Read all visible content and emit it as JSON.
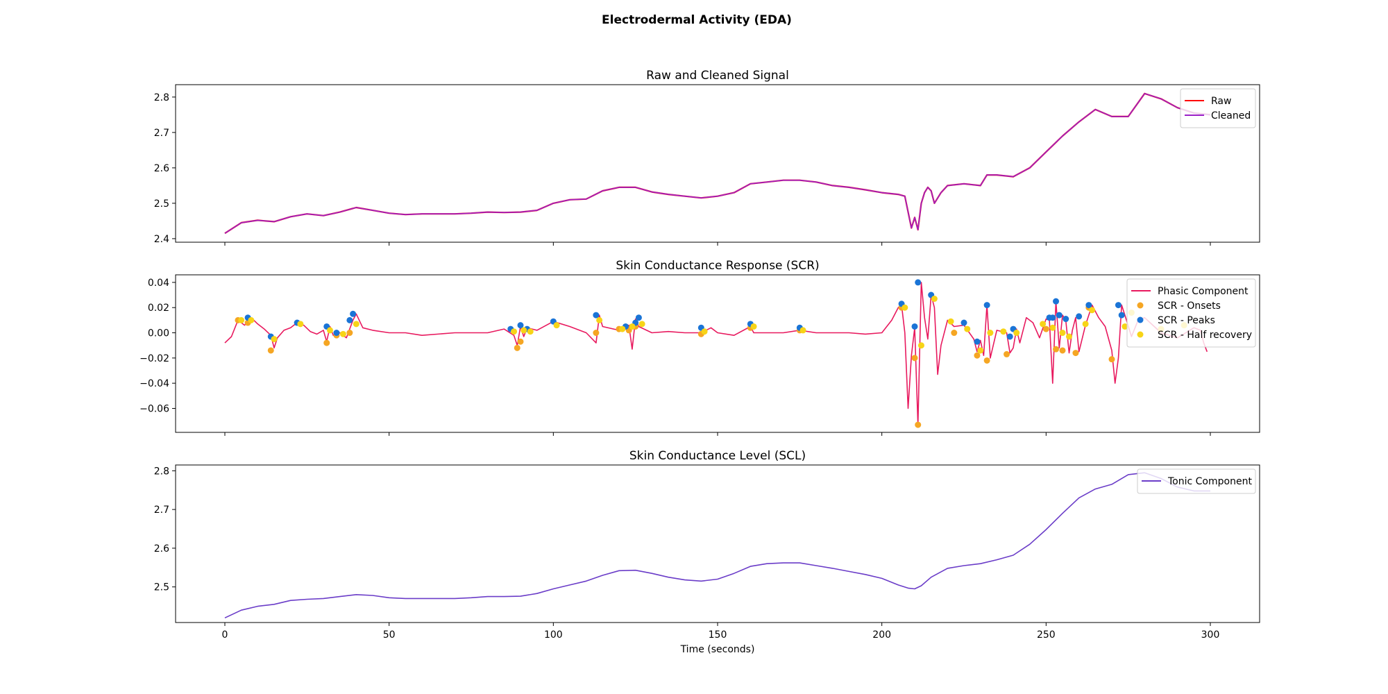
{
  "figure_title": "Electrodermal Activity (EDA)",
  "chart_data": [
    {
      "type": "line",
      "title": "Raw and Cleaned Signal",
      "xlabel": "",
      "ylabel": "",
      "xlim": [
        -15,
        315
      ],
      "ylim": [
        2.39,
        2.835
      ],
      "yticks": [
        2.4,
        2.5,
        2.6,
        2.7,
        2.8
      ],
      "xticks": [
        0,
        50,
        100,
        150,
        200,
        250,
        300
      ],
      "show_x_ticklabels": false,
      "grid": false,
      "legend": "top-right",
      "series": [
        {
          "name": "Raw",
          "color": "#ff0000",
          "x": [
            0,
            5,
            10,
            15,
            20,
            25,
            30,
            35,
            40,
            45,
            50,
            55,
            60,
            65,
            70,
            75,
            80,
            85,
            90,
            95,
            100,
            105,
            110,
            115,
            120,
            125,
            130,
            135,
            140,
            145,
            150,
            155,
            160,
            165,
            170,
            175,
            180,
            185,
            190,
            195,
            200,
            203,
            205,
            207,
            209,
            210,
            211,
            212,
            213,
            214,
            215,
            216,
            218,
            220,
            225,
            230,
            232,
            235,
            240,
            245,
            250,
            255,
            260,
            265,
            270,
            275,
            280,
            285,
            290,
            295,
            300
          ],
          "y": [
            2.415,
            2.445,
            2.452,
            2.448,
            2.462,
            2.47,
            2.465,
            2.475,
            2.488,
            2.48,
            2.472,
            2.468,
            2.47,
            2.47,
            2.47,
            2.472,
            2.475,
            2.474,
            2.475,
            2.48,
            2.5,
            2.51,
            2.512,
            2.535,
            2.545,
            2.545,
            2.532,
            2.525,
            2.52,
            2.515,
            2.52,
            2.53,
            2.555,
            2.56,
            2.565,
            2.565,
            2.56,
            2.55,
            2.545,
            2.538,
            2.53,
            2.527,
            2.525,
            2.52,
            2.43,
            2.46,
            2.425,
            2.5,
            2.53,
            2.545,
            2.535,
            2.5,
            2.53,
            2.55,
            2.555,
            2.55,
            2.58,
            2.58,
            2.575,
            2.6,
            2.645,
            2.69,
            2.73,
            2.765,
            2.745,
            2.745,
            2.81,
            2.795,
            2.77,
            2.755,
            2.75
          ]
        },
        {
          "name": "Cleaned",
          "color": "#9b20c8",
          "x": [
            0,
            5,
            10,
            15,
            20,
            25,
            30,
            35,
            40,
            45,
            50,
            55,
            60,
            65,
            70,
            75,
            80,
            85,
            90,
            95,
            100,
            105,
            110,
            115,
            120,
            125,
            130,
            135,
            140,
            145,
            150,
            155,
            160,
            165,
            170,
            175,
            180,
            185,
            190,
            195,
            200,
            203,
            205,
            207,
            209,
            210,
            211,
            212,
            213,
            214,
            215,
            216,
            218,
            220,
            225,
            230,
            232,
            235,
            240,
            245,
            250,
            255,
            260,
            265,
            270,
            275,
            280,
            285,
            290,
            295,
            300
          ],
          "y": [
            2.415,
            2.445,
            2.452,
            2.448,
            2.462,
            2.47,
            2.465,
            2.475,
            2.488,
            2.48,
            2.472,
            2.468,
            2.47,
            2.47,
            2.47,
            2.472,
            2.475,
            2.474,
            2.475,
            2.48,
            2.5,
            2.51,
            2.512,
            2.535,
            2.545,
            2.545,
            2.532,
            2.525,
            2.52,
            2.515,
            2.52,
            2.53,
            2.555,
            2.56,
            2.565,
            2.565,
            2.56,
            2.55,
            2.545,
            2.538,
            2.53,
            2.527,
            2.525,
            2.52,
            2.43,
            2.46,
            2.425,
            2.5,
            2.53,
            2.545,
            2.535,
            2.5,
            2.53,
            2.55,
            2.555,
            2.55,
            2.58,
            2.58,
            2.575,
            2.6,
            2.645,
            2.69,
            2.73,
            2.765,
            2.745,
            2.745,
            2.81,
            2.795,
            2.77,
            2.755,
            2.75
          ]
        }
      ]
    },
    {
      "type": "line",
      "title": "Skin Conductance Response (SCR)",
      "xlabel": "",
      "ylabel": "",
      "xlim": [
        -15,
        315
      ],
      "ylim": [
        -0.079,
        0.046
      ],
      "yticks": [
        -0.06,
        -0.04,
        -0.02,
        0.0,
        0.02,
        0.04
      ],
      "ytick_labels": [
        "−0.06",
        "−0.04",
        "−0.02",
        "0.00",
        "0.02",
        "0.04"
      ],
      "xticks": [
        0,
        50,
        100,
        150,
        200,
        250,
        300
      ],
      "show_x_ticklabels": false,
      "grid": false,
      "legend": "top-right",
      "series": [
        {
          "name": "Phasic Component",
          "color": "#e8195e",
          "x": [
            0,
            2,
            4,
            6,
            8,
            10,
            12,
            14,
            15,
            16,
            18,
            20,
            22,
            24,
            26,
            28,
            30,
            31,
            32,
            33,
            35,
            37,
            39,
            40,
            42,
            45,
            50,
            55,
            60,
            70,
            80,
            85,
            88,
            89,
            90,
            91,
            92,
            95,
            100,
            105,
            110,
            113,
            114,
            115,
            120,
            123,
            124,
            125,
            126,
            130,
            135,
            140,
            145,
            148,
            150,
            155,
            160,
            161,
            165,
            170,
            175,
            180,
            185,
            190,
            195,
            200,
            203,
            205,
            206,
            207,
            208,
            209,
            210,
            211,
            212,
            213,
            214,
            215,
            216,
            217,
            218,
            220,
            222,
            225,
            228,
            229,
            230,
            231,
            232,
            233,
            235,
            238,
            239,
            240,
            241,
            242,
            244,
            246,
            248,
            250,
            251,
            252,
            253,
            254,
            255,
            256,
            257,
            258,
            259,
            260,
            262,
            264,
            266,
            268,
            270,
            271,
            272,
            273,
            274,
            276,
            278,
            280,
            285,
            290,
            295,
            297,
            298,
            299
          ],
          "y": [
            -0.008,
            -0.003,
            0.01,
            0.006,
            0.012,
            0.007,
            0.003,
            -0.002,
            -0.012,
            -0.004,
            0.002,
            0.004,
            0.008,
            0.006,
            0.001,
            -0.001,
            0.002,
            -0.007,
            0.005,
            -0.002,
            0.0,
            -0.004,
            0.01,
            0.015,
            0.004,
            0.002,
            0.0,
            0.0,
            -0.002,
            0.0,
            0.0,
            0.003,
            -0.002,
            -0.01,
            0.005,
            -0.003,
            0.004,
            0.002,
            0.009,
            0.005,
            0.0,
            -0.008,
            0.014,
            0.005,
            0.002,
            0.006,
            -0.013,
            0.011,
            0.005,
            0.0,
            0.001,
            0.0,
            0.0,
            0.004,
            0.0,
            -0.002,
            0.005,
            0.0,
            0.0,
            0.0,
            0.002,
            0.0,
            0.0,
            0.0,
            -0.001,
            0.0,
            0.01,
            0.02,
            0.022,
            0.0,
            -0.06,
            -0.018,
            0.004,
            -0.073,
            0.04,
            0.012,
            -0.005,
            0.03,
            0.02,
            -0.033,
            -0.01,
            0.01,
            0.005,
            0.006,
            -0.005,
            -0.015,
            -0.006,
            -0.018,
            0.022,
            -0.02,
            0.002,
            0.0,
            -0.016,
            -0.012,
            0.003,
            -0.008,
            0.012,
            0.008,
            -0.004,
            0.011,
            0.01,
            -0.04,
            0.025,
            -0.012,
            0.014,
            0.01,
            -0.016,
            0.002,
            0.012,
            -0.015,
            0.006,
            0.022,
            0.012,
            0.005,
            -0.014,
            -0.04,
            -0.02,
            0.022,
            0.014,
            -0.003,
            0.01,
            0.012,
            0.0,
            -0.004,
            0.004,
            0.002,
            -0.008,
            -0.015
          ]
        },
        {
          "name": "SCR - Onsets",
          "type": "scatter",
          "color": "#f5a623",
          "x": [
            4,
            7,
            14,
            31,
            34,
            38,
            89,
            90,
            113,
            120,
            123,
            125,
            145,
            160,
            175,
            206,
            210,
            211,
            222,
            229,
            232,
            238,
            250,
            253,
            255,
            259,
            263,
            270
          ],
          "y": [
            0.01,
            0.008,
            -0.014,
            -0.008,
            -0.002,
            0.0,
            -0.012,
            -0.007,
            0.0,
            0.003,
            0.002,
            0.005,
            -0.001,
            0.004,
            0.002,
            0.02,
            -0.02,
            -0.073,
            0.0,
            -0.018,
            -0.022,
            -0.017,
            0.003,
            -0.013,
            -0.014,
            -0.016,
            0.02,
            -0.021
          ]
        },
        {
          "name": "SCR - Peaks",
          "color": "#1a74d6",
          "type": "scatter",
          "x": [
            7,
            14,
            22,
            31,
            34,
            38,
            39,
            87,
            90,
            92,
            100,
            113,
            122,
            125,
            126,
            145,
            160,
            175,
            206,
            210,
            211,
            215,
            225,
            229,
            232,
            239,
            240,
            251,
            252,
            253,
            254,
            256,
            260,
            263,
            272,
            273
          ],
          "y": [
            0.012,
            -0.003,
            0.008,
            0.005,
            0.0,
            0.01,
            0.015,
            0.003,
            0.006,
            0.003,
            0.009,
            0.014,
            0.005,
            0.008,
            0.012,
            0.004,
            0.007,
            0.004,
            0.023,
            0.005,
            0.04,
            0.03,
            0.008,
            -0.007,
            0.022,
            -0.003,
            0.003,
            0.012,
            0.012,
            0.025,
            0.014,
            0.011,
            0.013,
            0.022,
            0.022,
            0.014
          ]
        },
        {
          "name": "SCR - Half recovery",
          "color": "#f7d417",
          "type": "scatter",
          "x": [
            5,
            8,
            15,
            23,
            32,
            36,
            40,
            88,
            91,
            93,
            101,
            114,
            121,
            124,
            127,
            146,
            161,
            176,
            207,
            212,
            216,
            221,
            226,
            230,
            233,
            237,
            241,
            249,
            252,
            255,
            257,
            262,
            264,
            274,
            276,
            285,
            292
          ],
          "y": [
            0.01,
            0.01,
            -0.005,
            0.007,
            0.002,
            -0.001,
            0.007,
            0.001,
            0.002,
            0.001,
            0.006,
            0.01,
            0.003,
            0.005,
            0.007,
            0.001,
            0.005,
            0.002,
            0.02,
            -0.01,
            0.027,
            0.009,
            0.003,
            -0.014,
            0.0,
            0.001,
            0.0,
            0.007,
            0.004,
            0.0,
            -0.003,
            0.007,
            0.018,
            0.005,
            0.016,
            0.003,
            0.006
          ]
        }
      ]
    },
    {
      "type": "line",
      "title": "Skin Conductance Level (SCL)",
      "xlabel": "Time (seconds)",
      "ylabel": "",
      "xlim": [
        -15,
        315
      ],
      "ylim": [
        2.408,
        2.815
      ],
      "yticks": [
        2.5,
        2.6,
        2.7,
        2.8
      ],
      "xticks": [
        0,
        50,
        100,
        150,
        200,
        250,
        300
      ],
      "show_x_ticklabels": true,
      "grid": false,
      "legend": "top-right",
      "series": [
        {
          "name": "Tonic Component",
          "color": "#6a3cc8",
          "x": [
            0,
            5,
            10,
            15,
            20,
            25,
            30,
            35,
            40,
            45,
            50,
            55,
            60,
            65,
            70,
            75,
            80,
            85,
            90,
            95,
            100,
            105,
            110,
            115,
            120,
            125,
            130,
            135,
            140,
            145,
            150,
            155,
            160,
            165,
            170,
            175,
            180,
            185,
            190,
            195,
            200,
            205,
            208,
            210,
            212,
            215,
            220,
            225,
            230,
            235,
            240,
            245,
            250,
            255,
            260,
            265,
            270,
            275,
            280,
            285,
            290,
            295,
            300
          ],
          "y": [
            2.42,
            2.44,
            2.45,
            2.455,
            2.465,
            2.468,
            2.47,
            2.475,
            2.48,
            2.478,
            2.472,
            2.47,
            2.47,
            2.47,
            2.47,
            2.472,
            2.475,
            2.475,
            2.476,
            2.483,
            2.495,
            2.505,
            2.515,
            2.53,
            2.542,
            2.543,
            2.535,
            2.525,
            2.518,
            2.515,
            2.52,
            2.535,
            2.553,
            2.56,
            2.562,
            2.562,
            2.555,
            2.548,
            2.54,
            2.532,
            2.522,
            2.505,
            2.497,
            2.495,
            2.503,
            2.525,
            2.548,
            2.555,
            2.56,
            2.57,
            2.582,
            2.61,
            2.648,
            2.69,
            2.73,
            2.753,
            2.765,
            2.79,
            2.795,
            2.78,
            2.758,
            2.748,
            2.748
          ]
        }
      ]
    }
  ]
}
